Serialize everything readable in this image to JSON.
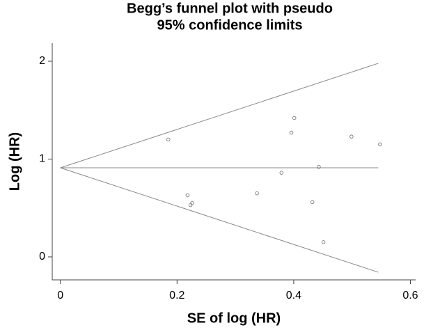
{
  "chart_data": {
    "type": "scatter",
    "title": [
      "Begg’s funnel plot with pseudo",
      "95% confidence limits"
    ],
    "x_label": "SE of log (HR)",
    "y_label": "Log (HR)",
    "xlim": [
      -0.014,
      0.609
    ],
    "ylim": [
      -0.235,
      2.185
    ],
    "xticks": [
      0,
      0.2,
      0.4,
      0.6
    ],
    "yticks": [
      0,
      1,
      2
    ],
    "points": {
      "color": "#777777",
      "x": [
        0.185,
        0.218,
        0.223,
        0.226,
        0.337,
        0.379,
        0.396,
        0.401,
        0.432,
        0.443,
        0.451,
        0.499,
        0.548
      ],
      "y": [
        1.2,
        0.63,
        0.53,
        0.55,
        0.65,
        0.86,
        1.27,
        1.42,
        0.56,
        0.92,
        0.15,
        1.23,
        1.15
      ]
    },
    "lines": [
      {
        "color": "#888888",
        "x": [
          0,
          0.545
        ],
        "y": [
          0.911,
          0.911
        ]
      },
      {
        "color": "#888888",
        "x": [
          0,
          0.545
        ],
        "y": [
          0.911,
          1.979
        ]
      },
      {
        "color": "#888888",
        "x": [
          0,
          0.545
        ],
        "y": [
          0.911,
          -0.157
        ]
      }
    ]
  }
}
